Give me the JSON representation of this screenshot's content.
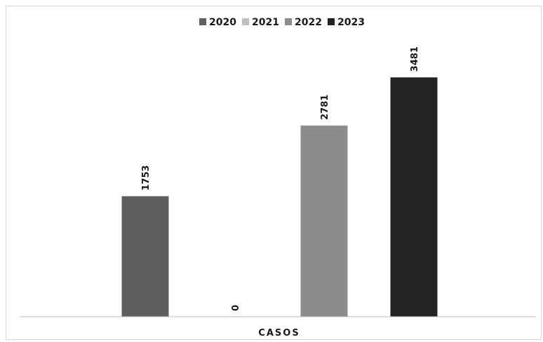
{
  "chart_data": {
    "type": "bar",
    "categories": [
      "CASOS"
    ],
    "series": [
      {
        "name": "2020",
        "values": [
          1753
        ],
        "color": "#5f5f5f"
      },
      {
        "name": "2021",
        "values": [
          0
        ],
        "color": "#bfbfbf"
      },
      {
        "name": "2022",
        "values": [
          2781
        ],
        "color": "#8c8c8c"
      },
      {
        "name": "2023",
        "values": [
          3481
        ],
        "color": "#232323"
      }
    ],
    "title": "",
    "xlabel": "",
    "ylabel": "",
    "ylim": [
      0,
      4000
    ],
    "legend_position": "top",
    "grid": false,
    "data_labels": true,
    "data_label_orientation": "vertical"
  }
}
